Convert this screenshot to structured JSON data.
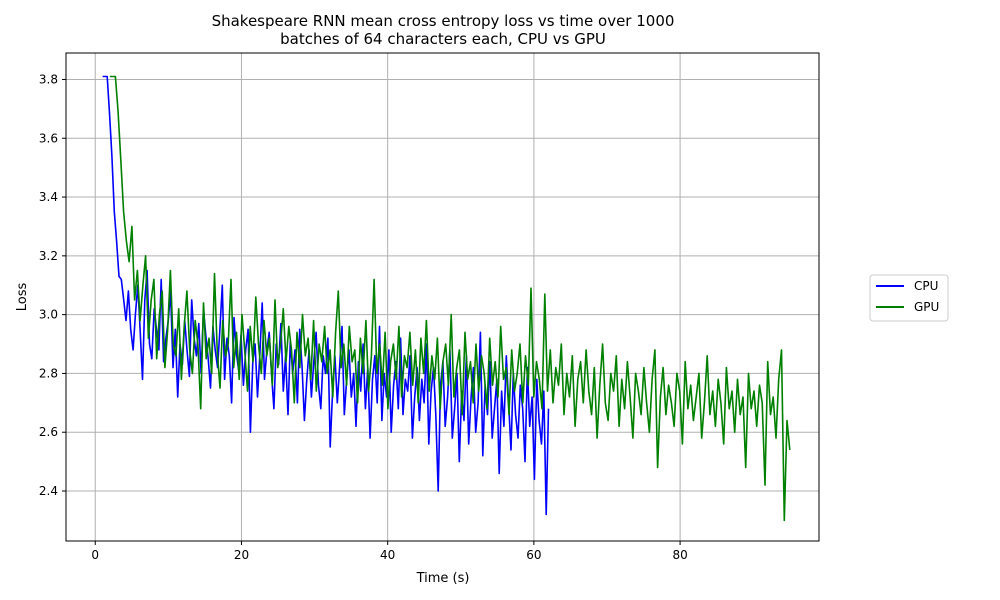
{
  "chart_data": {
    "type": "line",
    "title_line1": "Shakespeare RNN mean cross entropy loss vs time over 1000",
    "title_line2": "batches of 64 characters each, CPU vs GPU",
    "xlabel": "Time (s)",
    "ylabel": "Loss",
    "xlim": [
      -4,
      99
    ],
    "ylim": [
      2.23,
      3.89
    ],
    "xticks": [
      0,
      20,
      40,
      60,
      80
    ],
    "yticks": [
      2.4,
      2.6,
      2.8,
      3.0,
      3.2,
      3.4,
      3.6,
      3.8
    ],
    "xtick_labels": [
      "0",
      "20",
      "40",
      "60",
      "80"
    ],
    "ytick_labels": [
      "2.4",
      "2.6",
      "2.8",
      "3.0",
      "3.2",
      "3.4",
      "3.6",
      "3.8"
    ],
    "grid": true,
    "legend_position": "right, outside plot",
    "series": [
      {
        "name": "CPU",
        "color": "#0000ff",
        "x_start": 1.0,
        "x_end": 62.0,
        "values": [
          3.81,
          3.81,
          3.81,
          3.68,
          3.54,
          3.35,
          3.25,
          3.13,
          3.12,
          3.05,
          2.98,
          3.08,
          2.95,
          2.88,
          3.0,
          3.1,
          2.95,
          2.78,
          3.05,
          3.15,
          2.9,
          2.85,
          3.02,
          2.95,
          2.88,
          3.12,
          2.84,
          2.92,
          2.98,
          3.08,
          2.82,
          2.95,
          2.72,
          2.9,
          2.83,
          2.98,
          2.88,
          2.79,
          3.05,
          2.92,
          2.86,
          2.97,
          2.8,
          3.02,
          2.93,
          2.85,
          2.75,
          2.96,
          2.88,
          2.82,
          2.95,
          3.1,
          2.78,
          2.92,
          2.86,
          2.7,
          2.99,
          2.87,
          2.81,
          2.93,
          2.76,
          2.88,
          2.95,
          2.6,
          2.84,
          2.9,
          2.72,
          2.86,
          3.04,
          2.78,
          2.88,
          2.94,
          2.8,
          2.68,
          2.9,
          2.83,
          2.97,
          2.74,
          2.86,
          2.66,
          2.91,
          2.8,
          2.88,
          2.7,
          2.95,
          2.82,
          2.64,
          2.78,
          2.88,
          2.72,
          2.84,
          2.94,
          2.76,
          2.68,
          2.86,
          2.8,
          2.92,
          2.55,
          2.74,
          2.86,
          2.7,
          2.82,
          2.96,
          2.66,
          2.78,
          2.88,
          2.72,
          2.8,
          2.62,
          2.84,
          2.74,
          2.9,
          2.68,
          2.82,
          2.58,
          2.78,
          2.86,
          2.7,
          2.96,
          2.64,
          2.8,
          2.72,
          2.88,
          2.6,
          2.76,
          2.84,
          2.68,
          2.92,
          2.66,
          2.78,
          2.74,
          2.86,
          2.58,
          2.72,
          2.82,
          2.64,
          2.78,
          2.7,
          2.9,
          2.56,
          2.74,
          2.82,
          2.66,
          2.4,
          2.76,
          2.84,
          2.62,
          2.72,
          2.88,
          2.58,
          2.68,
          2.8,
          2.5,
          2.74,
          2.64,
          2.86,
          2.56,
          2.72,
          2.82,
          2.6,
          2.7,
          2.94,
          2.52,
          2.76,
          2.66,
          2.84,
          2.58,
          2.68,
          2.78,
          2.46,
          2.74,
          2.62,
          2.86,
          2.7,
          2.54,
          2.8,
          2.66,
          2.58,
          2.76,
          2.68,
          2.5,
          2.82,
          2.62,
          2.72,
          2.44,
          2.78,
          2.64,
          2.56,
          2.74,
          2.32,
          2.68
        ]
      },
      {
        "name": "GPU",
        "color": "#008000",
        "x_start": 2.0,
        "x_end": 95.0,
        "values": [
          3.81,
          3.81,
          3.81,
          3.69,
          3.52,
          3.35,
          3.25,
          3.18,
          3.3,
          3.05,
          3.15,
          2.98,
          3.1,
          3.2,
          2.92,
          3.05,
          3.12,
          2.85,
          3.0,
          3.08,
          2.82,
          2.95,
          3.15,
          2.9,
          2.86,
          3.02,
          2.78,
          2.96,
          3.08,
          2.88,
          2.8,
          2.98,
          2.9,
          2.68,
          3.04,
          2.85,
          2.92,
          2.8,
          3.14,
          2.88,
          2.75,
          2.98,
          2.86,
          2.9,
          3.12,
          2.82,
          2.94,
          2.78,
          3.0,
          2.88,
          2.74,
          2.96,
          2.84,
          3.06,
          2.9,
          2.8,
          2.98,
          2.86,
          2.92,
          2.76,
          3.05,
          2.82,
          2.9,
          3.02,
          2.84,
          2.96,
          2.88,
          2.7,
          2.94,
          2.82,
          3.0,
          2.86,
          2.92,
          2.78,
          2.98,
          2.74,
          2.9,
          2.84,
          2.96,
          2.8,
          2.88,
          2.72,
          2.94,
          3.08,
          2.82,
          2.9,
          2.76,
          2.96,
          2.84,
          2.88,
          2.7,
          2.92,
          2.8,
          2.98,
          2.74,
          2.86,
          3.12,
          2.8,
          2.9,
          2.76,
          2.94,
          2.68,
          2.84,
          2.9,
          2.78,
          2.96,
          2.72,
          2.86,
          2.82,
          2.94,
          2.76,
          2.88,
          2.7,
          2.92,
          2.8,
          2.98,
          2.74,
          2.86,
          2.78,
          2.92,
          2.68,
          2.84,
          2.9,
          2.76,
          3.0,
          2.72,
          2.82,
          2.88,
          2.66,
          2.94,
          2.78,
          2.84,
          2.7,
          2.9,
          2.74,
          2.86,
          2.8,
          2.68,
          2.92,
          2.76,
          2.84,
          2.72,
          2.96,
          2.78,
          2.82,
          2.66,
          2.88,
          2.74,
          2.8,
          2.9,
          2.7,
          2.86,
          2.76,
          3.09,
          2.72,
          2.84,
          2.78,
          2.68,
          3.07,
          2.74,
          2.88,
          2.7,
          2.82,
          2.76,
          2.9,
          2.66,
          2.8,
          2.72,
          2.86,
          2.62,
          2.78,
          2.84,
          2.7,
          2.88,
          2.74,
          2.66,
          2.82,
          2.58,
          2.76,
          2.9,
          2.7,
          2.64,
          2.8,
          2.74,
          2.86,
          2.62,
          2.78,
          2.68,
          2.84,
          2.72,
          2.58,
          2.8,
          2.74,
          2.66,
          2.82,
          2.7,
          2.6,
          2.78,
          2.88,
          2.48,
          2.72,
          2.82,
          2.66,
          2.76,
          2.7,
          2.62,
          2.8,
          2.74,
          2.56,
          2.84,
          2.68,
          2.76,
          2.64,
          2.72,
          2.8,
          2.58,
          2.7,
          2.86,
          2.66,
          2.74,
          2.62,
          2.78,
          2.7,
          2.56,
          2.82,
          2.68,
          2.74,
          2.6,
          2.78,
          2.66,
          2.72,
          2.48,
          2.8,
          2.68,
          2.74,
          2.62,
          2.76,
          2.7,
          2.42,
          2.84,
          2.66,
          2.72,
          2.58,
          2.78,
          2.88,
          2.3,
          2.64,
          2.54
        ]
      }
    ]
  }
}
